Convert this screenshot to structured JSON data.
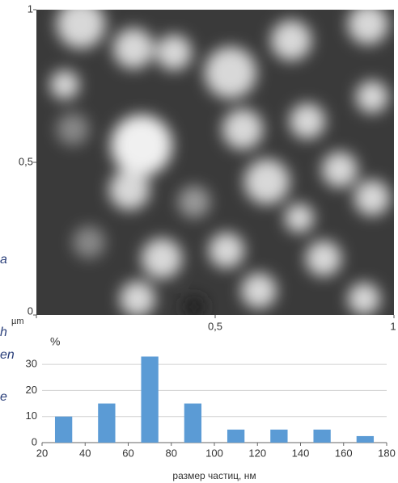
{
  "chart_data": [
    {
      "type": "image",
      "x_unit": "µm",
      "xlim": [
        0,
        1
      ],
      "ylim": [
        0,
        1
      ],
      "xticks": [
        0,
        {
          "value": 0.5,
          "label": "0,5"
        },
        1
      ],
      "yticks": [
        0,
        {
          "value": 0.5,
          "label": "0,5"
        },
        1
      ]
    },
    {
      "type": "bar",
      "ylabel": "%",
      "xlabel": "размер частиц, нм",
      "x": [
        30,
        50,
        70,
        90,
        110,
        130,
        150,
        170
      ],
      "values": [
        10,
        15,
        33,
        15,
        5,
        5,
        5,
        2.5
      ],
      "bar_width": 8,
      "color": "#5b9bd5",
      "xlim": [
        20,
        180
      ],
      "ylim": [
        0,
        35
      ],
      "xticks": [
        20,
        40,
        60,
        80,
        100,
        120,
        140,
        160,
        180
      ],
      "yticks": [
        0,
        10,
        20,
        30
      ],
      "grid": true
    }
  ],
  "fragments": [
    "a",
    "h",
    "en",
    "e"
  ]
}
